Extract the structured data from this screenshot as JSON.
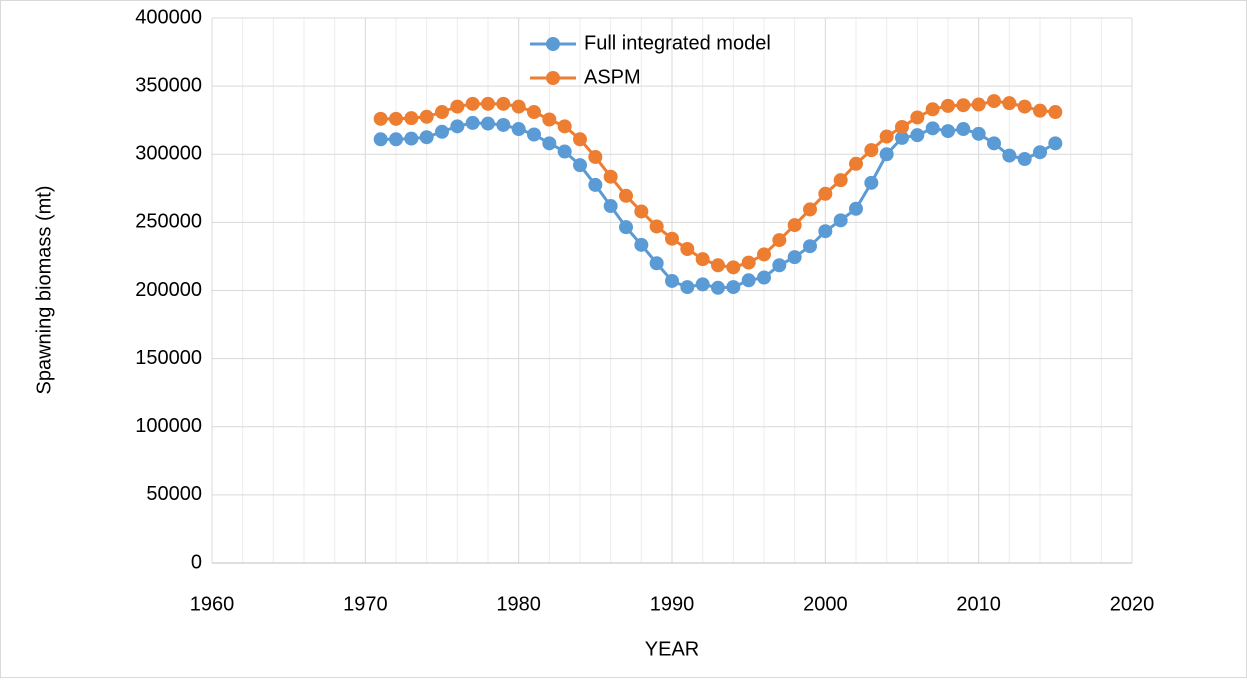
{
  "chart_data": {
    "type": "line",
    "y_label": "Spawning biomass (mt)",
    "x_label": "YEAR",
    "x": [
      1971,
      1972,
      1973,
      1974,
      1975,
      1976,
      1977,
      1978,
      1979,
      1980,
      1981,
      1982,
      1983,
      1984,
      1985,
      1986,
      1987,
      1988,
      1989,
      1990,
      1991,
      1992,
      1993,
      1994,
      1995,
      1996,
      1997,
      1998,
      1999,
      2000,
      2001,
      2002,
      2003,
      2004,
      2005,
      2006,
      2007,
      2008,
      2009,
      2010,
      2011,
      2012,
      2013,
      2014,
      2015
    ],
    "series": [
      {
        "name": "Full integrated model",
        "color": "#5b9bd5",
        "values": [
          311000,
          311000,
          311500,
          312500,
          316500,
          320500,
          323000,
          322500,
          321500,
          318500,
          314500,
          308000,
          302000,
          292000,
          277500,
          262000,
          246500,
          233500,
          220000,
          207000,
          202500,
          204500,
          202000,
          202500,
          207500,
          209500,
          218500,
          224500,
          232500,
          243500,
          251500,
          260000,
          279000,
          300000,
          312000,
          314000,
          319000,
          317000,
          318500,
          315000,
          308000,
          299000,
          296500,
          301500,
          308000
        ]
      },
      {
        "name": "ASPM",
        "color": "#ed7d31",
        "values": [
          326000,
          326000,
          326500,
          327500,
          331000,
          335000,
          337000,
          337000,
          337000,
          335000,
          331000,
          325500,
          320500,
          311000,
          298000,
          283500,
          269500,
          258000,
          247000,
          238000,
          230500,
          223000,
          218500,
          217000,
          220500,
          226500,
          237000,
          248000,
          259500,
          271000,
          281000,
          293000,
          303000,
          313000,
          320000,
          327000,
          333000,
          335500,
          336000,
          336500,
          339000,
          337500,
          335000,
          332000,
          331000
        ]
      }
    ],
    "xlim": [
      1960,
      2020
    ],
    "xticks": [
      1960,
      1970,
      1980,
      1990,
      2000,
      2010,
      2020
    ],
    "xminorticks": [
      1962,
      1964,
      1966,
      1968,
      1972,
      1974,
      1976,
      1978,
      1982,
      1984,
      1986,
      1988,
      1992,
      1994,
      1996,
      1998,
      2002,
      2004,
      2006,
      2008,
      2012,
      2014,
      2016,
      2018
    ],
    "ylim": [
      0,
      400000
    ],
    "yticks": [
      0,
      50000,
      100000,
      150000,
      200000,
      250000,
      300000,
      350000,
      400000
    ],
    "grid": true,
    "legend": "top"
  }
}
